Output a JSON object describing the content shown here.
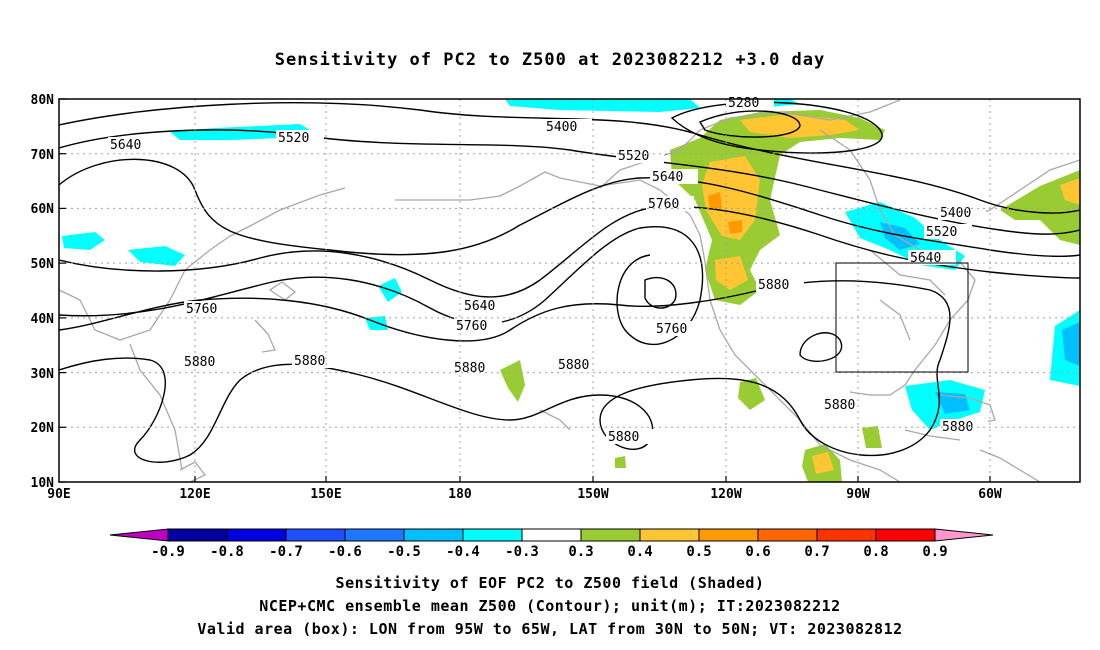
{
  "title": "Sensitivity of PC2 to Z500 at 2023082212 +3.0 day",
  "lat_labels": [
    "80N",
    "70N",
    "60N",
    "50N",
    "40N",
    "30N",
    "20N",
    "10N"
  ],
  "lon_labels": [
    "90E",
    "120E",
    "150E",
    "180",
    "150W",
    "120W",
    "90W",
    "60W"
  ],
  "contour_labels": [
    "5280",
    "5400",
    "5520",
    "5640",
    "5760",
    "5880"
  ],
  "colorbar": {
    "labels": [
      "-0.9",
      "-0.8",
      "-0.7",
      "-0.6",
      "-0.5",
      "-0.4",
      "-0.3",
      "0.3",
      "0.4",
      "0.5",
      "0.6",
      "0.7",
      "0.8",
      "0.9"
    ],
    "colors": [
      "#c000c0",
      "#0000a0",
      "#0000e0",
      "#1e50ff",
      "#1e78ff",
      "#00bfff",
      "#00ffff",
      "#ffffff",
      "#99cc33",
      "#ffc533",
      "#ff9900",
      "#ff6600",
      "#ff3300",
      "#ff0000",
      "#ff99cc"
    ]
  },
  "captions": [
    "Sensitivity of EOF PC2 to Z500 field (Shaded)",
    "NCEP+CMC ensemble mean Z500 (Contour); unit(m); IT:2023082212",
    "Valid area (box): LON from 95W to 65W, LAT from 30N to 50N; VT: 2023082812"
  ]
}
